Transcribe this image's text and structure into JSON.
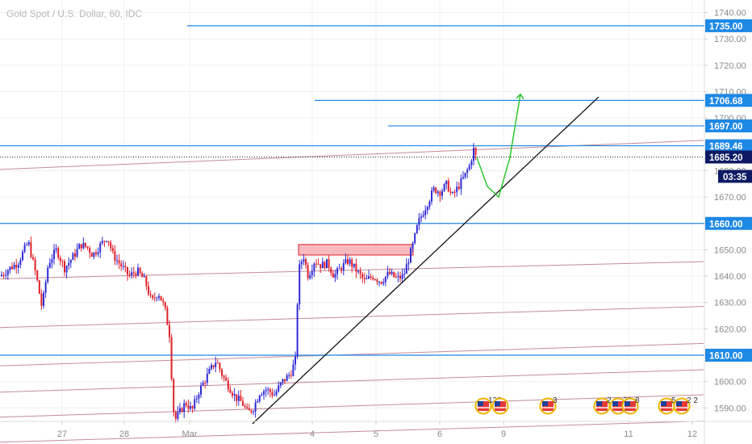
{
  "header": {
    "title": "Gold Spot / U.S. Dollar, 60, IDC"
  },
  "colors": {
    "up": "#2f2ad6",
    "down": "#e0202a",
    "level_line": "#1e88e5",
    "channel_line": "#c48b9a",
    "trend_line": "#111111",
    "projection": "#22c322",
    "zone_fill": "#f5a3a8",
    "zone_border": "#e0202a",
    "badge_blue": "#1e88e5",
    "badge_dark": "#0d1a63",
    "axis_text": "#8a8a8a",
    "grid": "#f0f0f0"
  },
  "chart_data": {
    "type": "candlestick",
    "title": "Gold Spot / U.S. Dollar, 60, IDC",
    "x_ticks": [
      "27",
      "28",
      "Mar",
      "4",
      "5",
      "6",
      "9",
      "11",
      "12"
    ],
    "y_ticks": [
      1590,
      1600,
      1610,
      1620,
      1630,
      1640,
      1650,
      1660,
      1670,
      1680,
      1690,
      1700,
      1710,
      1720,
      1730,
      1740
    ],
    "y_tick_labels": [
      "1590.00",
      "1600.00",
      "1610.00",
      "1620.00",
      "1630.00",
      "1640.00",
      "1650.00",
      "1660.00",
      "1670.00",
      "1680.00",
      "1690.00",
      "1700.00",
      "1710.00",
      "1720.00",
      "1730.00",
      "1740.00"
    ],
    "ylim": [
      1582.5,
      1744
    ],
    "price_path": [
      [
        0,
        1640
      ],
      [
        12,
        1643
      ],
      [
        22,
        1645
      ],
      [
        35,
        1653
      ],
      [
        45,
        1640
      ],
      [
        52,
        1628
      ],
      [
        60,
        1645
      ],
      [
        70,
        1650
      ],
      [
        80,
        1643
      ],
      [
        92,
        1648
      ],
      [
        100,
        1652
      ],
      [
        108,
        1651
      ],
      [
        115,
        1648
      ],
      [
        125,
        1652
      ],
      [
        133,
        1655
      ],
      [
        140,
        1648
      ],
      [
        150,
        1644
      ],
      [
        160,
        1640
      ],
      [
        170,
        1642
      ],
      [
        180,
        1638
      ],
      [
        188,
        1630
      ],
      [
        196,
        1634
      ],
      [
        204,
        1628
      ],
      [
        210,
        1618
      ],
      [
        213,
        1600
      ],
      [
        216,
        1585
      ],
      [
        222,
        1588
      ],
      [
        230,
        1592
      ],
      [
        238,
        1589
      ],
      [
        246,
        1596
      ],
      [
        253,
        1600
      ],
      [
        260,
        1604
      ],
      [
        268,
        1608
      ],
      [
        276,
        1602
      ],
      [
        284,
        1598
      ],
      [
        292,
        1594
      ],
      [
        300,
        1592
      ],
      [
        307,
        1588
      ],
      [
        314,
        1590
      ],
      [
        322,
        1596
      ],
      [
        330,
        1597
      ],
      [
        340,
        1595
      ],
      [
        350,
        1600
      ],
      [
        360,
        1603
      ],
      [
        366,
        1608
      ],
      [
        370,
        1642
      ],
      [
        376,
        1648
      ],
      [
        382,
        1640
      ],
      [
        390,
        1646
      ],
      [
        398,
        1644
      ],
      [
        406,
        1645
      ],
      [
        414,
        1640
      ],
      [
        422,
        1643
      ],
      [
        432,
        1646
      ],
      [
        442,
        1642
      ],
      [
        452,
        1638
      ],
      [
        462,
        1640
      ],
      [
        472,
        1638
      ],
      [
        482,
        1641
      ],
      [
        492,
        1639
      ],
      [
        500,
        1640
      ],
      [
        506,
        1646
      ],
      [
        512,
        1652
      ],
      [
        518,
        1660
      ],
      [
        524,
        1664
      ],
      [
        530,
        1668
      ],
      [
        538,
        1673
      ],
      [
        546,
        1672
      ],
      [
        554,
        1675
      ],
      [
        560,
        1670
      ],
      [
        568,
        1674
      ],
      [
        576,
        1678
      ],
      [
        582,
        1682
      ],
      [
        587,
        1688
      ],
      [
        591,
        1684
      ]
    ],
    "levels": [
      {
        "label": "1735.00",
        "value": 1735,
        "x_start": 232
      },
      {
        "label": "1706.68",
        "value": 1706.68,
        "x_start": 390
      },
      {
        "label": "1697.00",
        "value": 1697,
        "x_start": 481
      },
      {
        "label": "1689.46",
        "value": 1689.46,
        "x_start": 0
      },
      {
        "label": "1660.00",
        "value": 1660,
        "x_start": 0
      },
      {
        "label": "1610.00",
        "value": 1610,
        "x_start": 0
      }
    ],
    "current_price": {
      "label": "1685.20",
      "value": 1685.2
    },
    "countdown": "03:35",
    "trend_line": {
      "from": [
        313,
        1584
      ],
      "to": [
        742,
        1708
      ]
    },
    "channel_lines": [
      [
        [
          0,
          1680.5
        ],
        [
          872,
          1691.5
        ]
      ],
      [
        [
          0,
          1639
        ],
        [
          872,
          1645.5
        ]
      ],
      [
        [
          0,
          1620.5
        ],
        [
          872,
          1628.5
        ]
      ],
      [
        [
          0,
          1606
        ],
        [
          872,
          1614.5
        ]
      ],
      [
        [
          0,
          1596
        ],
        [
          872,
          1604.5
        ]
      ],
      [
        [
          0,
          1586.5
        ],
        [
          872,
          1595
        ]
      ],
      [
        [
          0,
          1577
        ],
        [
          872,
          1585
        ]
      ]
    ],
    "resistance_zone": {
      "x_start": 370,
      "x_end": 512,
      "top": 1652,
      "bottom": 1648
    },
    "projection_path": [
      [
        591,
        1685
      ],
      [
        604,
        1674
      ],
      [
        618,
        1670
      ],
      [
        632,
        1685
      ],
      [
        640,
        1700
      ],
      [
        645,
        1709
      ]
    ],
    "events": [
      {
        "x": 599,
        "text": "123"
      },
      {
        "x": 620,
        "text": ""
      },
      {
        "x": 679,
        "text": "3"
      },
      {
        "x": 746,
        "text": "2"
      },
      {
        "x": 766,
        "text": "22"
      },
      {
        "x": 781,
        "text": "8"
      },
      {
        "x": 826,
        "text": "5"
      },
      {
        "x": 845,
        "text": "2 2"
      }
    ]
  }
}
